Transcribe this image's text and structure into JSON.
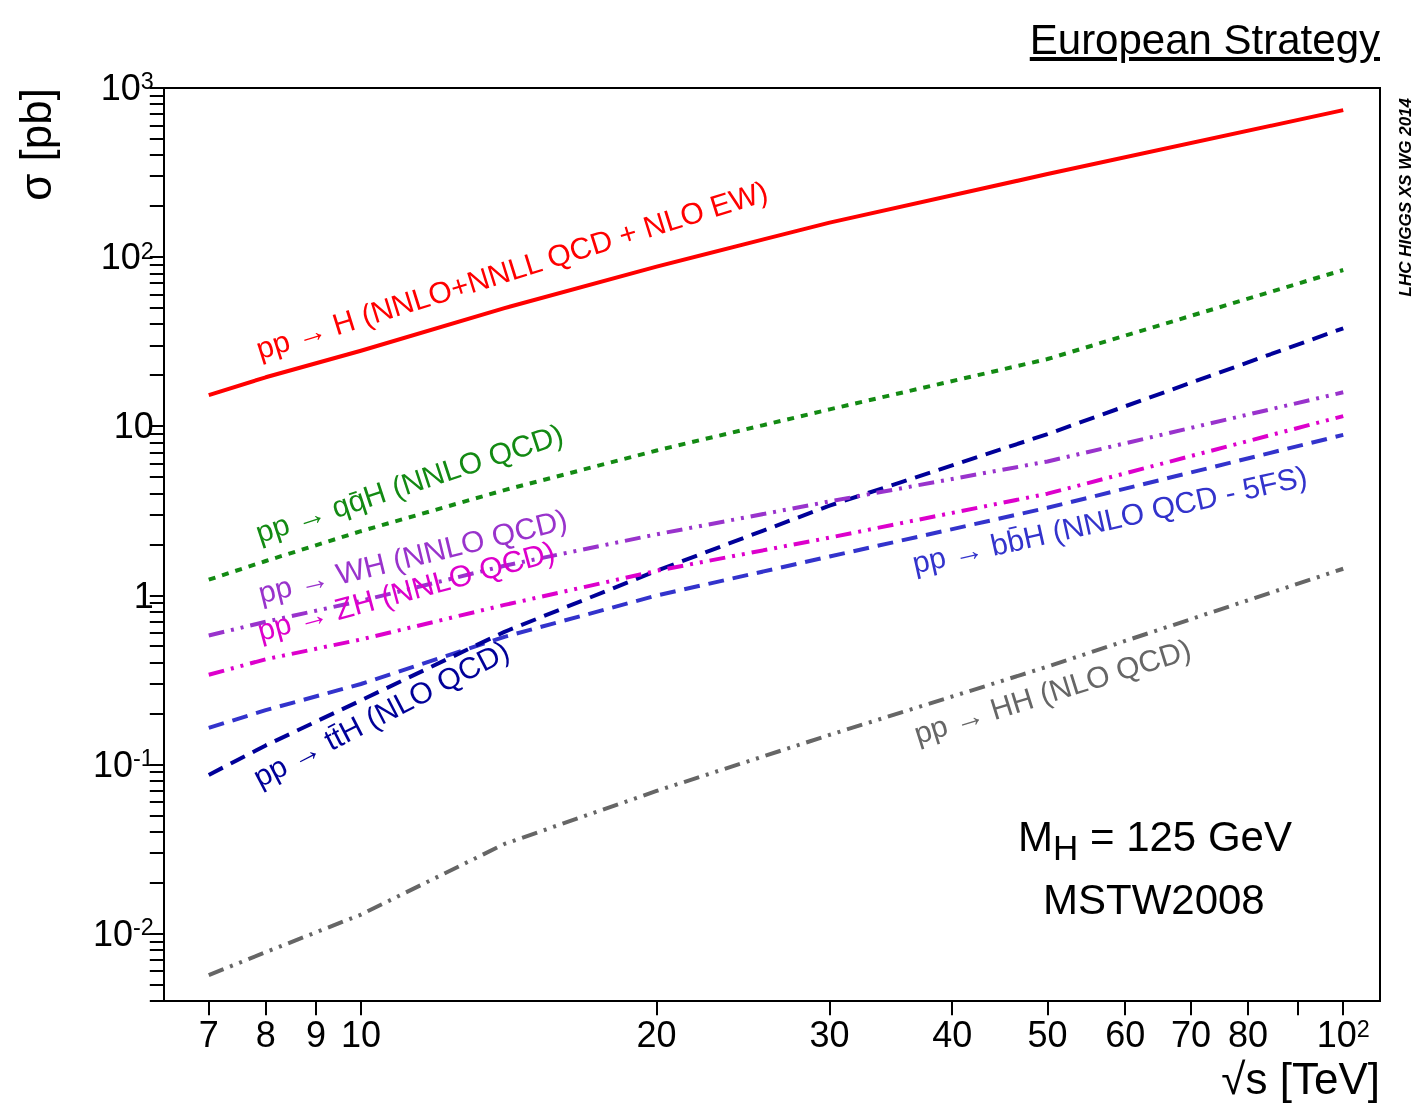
{
  "chart_data": {
    "type": "line",
    "title": "European Strategy",
    "xlabel": "√s [TeV]",
    "ylabel": "σ [pb]",
    "log": "xy",
    "grid": false,
    "legend": false,
    "marker": "none",
    "xlim": [
      6.3,
      109
    ],
    "ylim": [
      0.004,
      1000
    ],
    "xticks": [
      7,
      8,
      9,
      10,
      20,
      30,
      40,
      50,
      60,
      70,
      80,
      {
        "value": 90,
        "label": null
      },
      {
        "value": 100,
        "label": "10$^{2}$"
      }
    ],
    "yticks": [
      {
        "value": 0.004,
        "label": null
      },
      {
        "value": 0.005,
        "label": null
      },
      {
        "value": 0.006,
        "label": null
      },
      {
        "value": 0.007,
        "label": null
      },
      {
        "value": 0.008,
        "label": null
      },
      {
        "value": 0.009,
        "label": null
      },
      {
        "value": 0.01,
        "label": "10$^{-2}$"
      },
      {
        "value": 0.02,
        "label": null
      },
      {
        "value": 0.03,
        "label": null
      },
      {
        "value": 0.04,
        "label": null
      },
      {
        "value": 0.05,
        "label": null
      },
      {
        "value": 0.06,
        "label": null
      },
      {
        "value": 0.07,
        "label": null
      },
      {
        "value": 0.08,
        "label": null
      },
      {
        "value": 0.09,
        "label": null
      },
      {
        "value": 0.1,
        "label": "10$^{-1}$"
      },
      {
        "value": 0.2,
        "label": null
      },
      {
        "value": 0.3,
        "label": null
      },
      {
        "value": 0.4,
        "label": null
      },
      {
        "value": 0.5,
        "label": null
      },
      {
        "value": 0.6,
        "label": null
      },
      {
        "value": 0.7,
        "label": null
      },
      {
        "value": 0.8,
        "label": null
      },
      {
        "value": 0.9,
        "label": null
      },
      1,
      {
        "value": 2,
        "label": null
      },
      {
        "value": 3,
        "label": null
      },
      {
        "value": 4,
        "label": null
      },
      {
        "value": 5,
        "label": null
      },
      {
        "value": 6,
        "label": null
      },
      {
        "value": 7,
        "label": null
      },
      {
        "value": 8,
        "label": null
      },
      {
        "value": 9,
        "label": null
      },
      10,
      {
        "value": 20,
        "label": null
      },
      {
        "value": 30,
        "label": null
      },
      {
        "value": 40,
        "label": null
      },
      {
        "value": 50,
        "label": null
      },
      {
        "value": 60,
        "label": null
      },
      {
        "value": 70,
        "label": null
      },
      {
        "value": 80,
        "label": null
      },
      {
        "value": 90,
        "label": null
      },
      {
        "value": 100,
        "label": "10$^{2}$"
      },
      {
        "value": 200,
        "label": null
      },
      {
        "value": 300,
        "label": null
      },
      {
        "value": 400,
        "label": null
      },
      {
        "value": 500,
        "label": null
      },
      {
        "value": 600,
        "label": null
      },
      {
        "value": 700,
        "label": null
      },
      {
        "value": 800,
        "label": null
      },
      {
        "value": 900,
        "label": null
      },
      {
        "value": 1000,
        "label": "10$^{3}$"
      }
    ],
    "x": [
      7,
      8,
      10,
      14,
      20,
      30,
      50,
      100
    ],
    "series": [
      {
        "name": "pp → H (NNLO+NNLL QCD + NLO EW)",
        "color": "#ff0000",
        "line_style": "solid",
        "values": [
          15.3,
          19.5,
          28,
          50,
          88,
          160,
          310,
          740
        ]
      },
      {
        "name": "pp → qq̄H (NNLO QCD)",
        "color": "#138a13",
        "line_style": "dotted",
        "values": [
          1.24,
          1.6,
          2.4,
          4.2,
          7.2,
          12.6,
          25,
          84
        ]
      },
      {
        "name": "pp → WH (NNLO QCD)",
        "color": "#9933cc",
        "line_style": "dashdot",
        "values": [
          0.58,
          0.7,
          0.93,
          1.5,
          2.3,
          3.6,
          6.2,
          15.9
        ]
      },
      {
        "name": "pp → ZH (NNLO QCD)",
        "color": "#dd00cc",
        "line_style": "dashdot",
        "values": [
          0.34,
          0.42,
          0.55,
          0.88,
          1.4,
          2.2,
          4.0,
          11.5
        ]
      },
      {
        "name": "pp → tt̄H (NLO QCD)",
        "color": "#000099",
        "line_style": "dashed",
        "values": [
          0.087,
          0.13,
          0.24,
          0.61,
          1.4,
          3.4,
          9,
          38
        ]
      },
      {
        "name": "pp → bb̄H (NNLO QCD - 5FS)",
        "color": "#3333cc",
        "line_style": "dashed",
        "values": [
          0.165,
          0.21,
          0.3,
          0.57,
          1.0,
          1.7,
          3.3,
          8.9
        ]
      },
      {
        "name": "pp → HH (NLO QCD)",
        "color": "#666666",
        "line_style": "dashdot",
        "values": [
          0.0057,
          0.0078,
          0.013,
          0.034,
          0.07,
          0.15,
          0.38,
          1.44
        ]
      }
    ],
    "annotations": [
      "M$_{H}$ = 125 GeV",
      "MSTW2008",
      "LHC HIGGS XS WG 2014"
    ]
  }
}
